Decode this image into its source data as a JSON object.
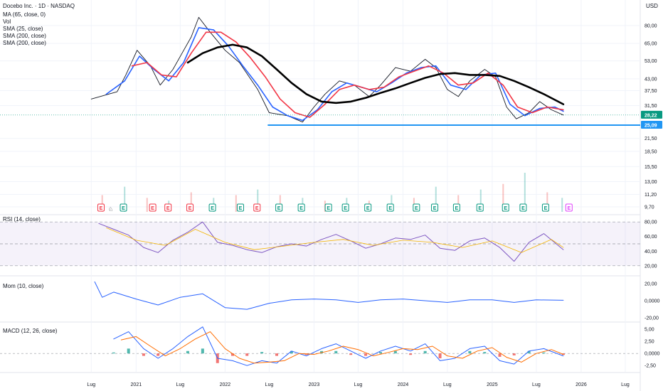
{
  "header": {
    "title": "Docebo Inc. · 1D · NASDAQ",
    "indicators": [
      "MA (65, close, 0)",
      "Vol",
      "SMA (25, close)",
      "SMA (200, close)",
      "SMA (200, close)"
    ],
    "currency": "USD"
  },
  "colors": {
    "price": "#131722",
    "sma_blue": "#2962ff",
    "sma_red": "#f23645",
    "sma_black": "#000000",
    "support": "#2196f3",
    "rsi": "#7e57c2",
    "rsi_ma": "#f4b400",
    "mom": "#2962ff",
    "macd": "#2962ff",
    "signal": "#ff6d00",
    "hist_up": "#26a69a",
    "hist_down": "#ef5350",
    "vol_up": "#26a69a",
    "vol_down": "#ef5350",
    "current_tag": "#089981",
    "earn_green": "#089981",
    "earn_red": "#f23645",
    "earn_purple": "#e040fb"
  },
  "chart_data": [
    {
      "type": "line",
      "pane": "price",
      "y_scale": "log",
      "ylim": [
        9.0,
        105.0
      ],
      "y_ticks": [
        "80,00",
        "65,00",
        "53,00",
        "43,00",
        "37,50",
        "31,50",
        "28,22",
        "25,09",
        "21,50",
        "18,50",
        "15,50",
        "13,00",
        "11,20",
        "9,70"
      ],
      "x_ticks": [
        "Lug",
        "2021",
        "Lug",
        "2022",
        "Lug",
        "2023",
        "Lug",
        "2024",
        "Lug",
        "2025",
        "Lug",
        "2026",
        "Lug"
      ],
      "x_range": [
        "2020-06-01",
        "2026-09-15"
      ],
      "series": [
        {
          "role": "price",
          "x": [
            "2020-07-01",
            "2020-10-15",
            "2020-11-20",
            "2021-01-05",
            "2021-03-01",
            "2021-04-10",
            "2021-06-01",
            "2021-08-15",
            "2021-09-15",
            "2021-11-01",
            "2022-01-01",
            "2022-03-01",
            "2022-05-15",
            "2022-07-01",
            "2022-09-15",
            "2022-11-15",
            "2023-01-01",
            "2023-02-15",
            "2023-04-15",
            "2023-06-15",
            "2023-08-15",
            "2023-10-01",
            "2023-12-01",
            "2024-02-01",
            "2024-04-01",
            "2024-05-15",
            "2024-07-01",
            "2024-08-15",
            "2024-10-01",
            "2024-12-01",
            "2025-01-15",
            "2025-03-01",
            "2025-04-10",
            "2025-06-01",
            "2025-07-15",
            "2025-09-01",
            "2025-10-20"
          ],
          "y": [
            34,
            37,
            45,
            60,
            50,
            40,
            48,
            70,
            88,
            74,
            60,
            52,
            38,
            29,
            28,
            26,
            31,
            36,
            42,
            40,
            35,
            40,
            49,
            47,
            54,
            49,
            38,
            35,
            42,
            48,
            44,
            31,
            27,
            29,
            33,
            30,
            28.22
          ]
        },
        {
          "role": "sma_blue",
          "x": [
            "2020-09-01",
            "2020-11-15",
            "2021-01-15",
            "2021-03-15",
            "2021-05-15",
            "2021-07-15",
            "2021-09-15",
            "2021-11-15",
            "2022-01-15",
            "2022-03-15",
            "2022-05-15",
            "2022-07-15",
            "2022-09-15",
            "2022-11-15",
            "2023-01-15",
            "2023-03-15",
            "2023-05-15",
            "2023-07-15",
            "2023-09-15",
            "2023-11-15",
            "2024-01-15",
            "2024-03-15",
            "2024-05-15",
            "2024-07-15",
            "2024-09-15",
            "2024-11-15",
            "2025-01-15",
            "2025-03-15",
            "2025-05-15",
            "2025-07-15",
            "2025-09-15",
            "2025-10-20"
          ],
          "y": [
            36,
            42,
            56,
            48,
            42,
            52,
            78,
            76,
            63,
            50,
            40,
            31,
            28,
            26.5,
            30,
            37,
            41,
            39,
            37,
            41,
            46,
            49,
            50,
            40,
            38,
            45,
            46,
            32,
            28,
            30.5,
            31,
            29.5
          ]
        },
        {
          "role": "sma_red",
          "x": [
            "2020-12-15",
            "2021-02-15",
            "2021-04-15",
            "2021-06-15",
            "2021-08-15",
            "2021-10-15",
            "2021-12-15",
            "2022-02-15",
            "2022-04-15",
            "2022-06-15",
            "2022-08-15",
            "2022-10-15",
            "2022-12-15",
            "2023-02-15",
            "2023-04-15",
            "2023-06-15",
            "2023-08-15",
            "2023-10-15",
            "2023-12-15",
            "2024-02-15",
            "2024-04-15",
            "2024-06-15",
            "2024-08-15",
            "2024-10-15",
            "2024-12-15",
            "2025-02-15",
            "2025-04-15",
            "2025-06-15",
            "2025-08-15",
            "2025-10-20"
          ],
          "y": [
            50,
            52,
            45,
            44,
            58,
            74,
            74,
            66,
            55,
            44,
            34,
            29,
            27.5,
            32,
            38,
            40,
            38,
            39,
            44,
            47,
            50,
            46,
            40,
            41,
            46,
            40,
            31,
            29,
            31,
            30
          ]
        },
        {
          "role": "sma_black",
          "x": [
            "2021-08-01",
            "2021-10-01",
            "2021-12-01",
            "2022-02-01",
            "2022-04-01",
            "2022-06-01",
            "2022-08-01",
            "2022-10-01",
            "2022-12-01",
            "2023-02-01",
            "2023-04-01",
            "2023-06-01",
            "2023-08-01",
            "2023-10-01",
            "2023-12-01",
            "2024-02-01",
            "2024-04-01",
            "2024-06-01",
            "2024-08-01",
            "2024-10-01",
            "2024-12-01",
            "2025-02-01",
            "2025-04-01",
            "2025-06-01",
            "2025-08-01",
            "2025-10-20"
          ],
          "y": [
            52,
            58,
            62,
            64,
            62,
            56,
            48,
            41,
            36,
            33,
            32.5,
            33,
            34.5,
            36.5,
            38.5,
            41,
            43.5,
            45.5,
            46,
            45,
            45,
            44.5,
            42,
            39,
            36,
            32
          ]
        }
      ],
      "support": {
        "y": 25.09,
        "x_start": "2022-06-25",
        "label": "25,09"
      },
      "current": {
        "y": 28.22,
        "label": "28,22"
      }
    },
    {
      "type": "bar",
      "pane": "volume",
      "x": [
        "2020-08",
        "2020-11",
        "2021-02",
        "2021-05",
        "2021-08",
        "2021-11",
        "2022-02",
        "2022-05",
        "2022-08",
        "2022-11",
        "2023-02",
        "2023-05",
        "2023-08",
        "2023-11",
        "2024-02",
        "2024-05",
        "2024-08",
        "2024-11",
        "2025-02",
        "2025-05",
        "2025-08",
        "2025-10"
      ],
      "values": [
        30,
        45,
        25,
        20,
        35,
        25,
        30,
        40,
        30,
        25,
        20,
        25,
        20,
        30,
        25,
        45,
        30,
        40,
        50,
        70,
        35,
        25
      ],
      "earnings": [
        {
          "x": "2020-08-10",
          "label": "E",
          "kind": "red"
        },
        {
          "x": "2020-11-10",
          "label": "E",
          "kind": "green"
        },
        {
          "x": "2021-03-10",
          "label": "E",
          "kind": "red"
        },
        {
          "x": "2021-05-12",
          "label": "E",
          "kind": "red"
        },
        {
          "x": "2021-08-10",
          "label": "E",
          "kind": "red"
        },
        {
          "x": "2021-11-10",
          "label": "E",
          "kind": "green"
        },
        {
          "x": "2022-03-05",
          "label": "E",
          "kind": "green"
        },
        {
          "x": "2022-05-12",
          "label": "E",
          "kind": "red"
        },
        {
          "x": "2022-08-10",
          "label": "E",
          "kind": "green"
        },
        {
          "x": "2022-11-10",
          "label": "E",
          "kind": "green"
        },
        {
          "x": "2023-03-01",
          "label": "E",
          "kind": "green"
        },
        {
          "x": "2023-05-10",
          "label": "E",
          "kind": "green"
        },
        {
          "x": "2023-08-10",
          "label": "E",
          "kind": "green"
        },
        {
          "x": "2023-11-10",
          "label": "E",
          "kind": "green"
        },
        {
          "x": "2024-02-25",
          "label": "E",
          "kind": "green"
        },
        {
          "x": "2024-05-10",
          "label": "E",
          "kind": "green"
        },
        {
          "x": "2024-08-08",
          "label": "E",
          "kind": "green"
        },
        {
          "x": "2024-11-12",
          "label": "E",
          "kind": "green"
        },
        {
          "x": "2025-02-25",
          "label": "E",
          "kind": "green"
        },
        {
          "x": "2025-05-08",
          "label": "E",
          "kind": "green"
        },
        {
          "x": "2025-08-08",
          "label": "E",
          "kind": "green"
        },
        {
          "x": "2025-11-12",
          "label": "E",
          "kind": "purple"
        }
      ]
    },
    {
      "type": "line",
      "pane": "rsi",
      "title": "RSI (14, close)",
      "ylim": [
        12,
        88
      ],
      "y_ticks": [
        "80,00",
        "60,00",
        "40,00",
        "20,00"
      ],
      "bands": [
        30,
        70
      ],
      "series": [
        {
          "role": "rsi",
          "x": [
            "2020-08-01",
            "2020-10-01",
            "2020-12-01",
            "2021-02-01",
            "2021-04-01",
            "2021-06-01",
            "2021-08-01",
            "2021-10-01",
            "2021-12-01",
            "2022-02-01",
            "2022-04-01",
            "2022-06-01",
            "2022-08-01",
            "2022-10-01",
            "2022-12-01",
            "2023-02-01",
            "2023-04-01",
            "2023-06-01",
            "2023-08-01",
            "2023-10-01",
            "2023-12-01",
            "2024-02-01",
            "2024-04-01",
            "2024-06-01",
            "2024-08-01",
            "2024-10-01",
            "2024-12-01",
            "2025-02-01",
            "2025-04-01",
            "2025-06-01",
            "2025-08-01",
            "2025-10-20"
          ],
          "y": [
            78,
            70,
            62,
            45,
            38,
            55,
            66,
            80,
            52,
            48,
            42,
            38,
            46,
            50,
            47,
            56,
            63,
            54,
            44,
            50,
            58,
            56,
            62,
            44,
            41,
            54,
            58,
            45,
            26,
            52,
            64,
            42
          ]
        },
        {
          "role": "rsi_ma",
          "x": [
            "2020-09-01",
            "2021-01-01",
            "2021-05-01",
            "2021-09-01",
            "2022-01-01",
            "2022-05-01",
            "2022-09-01",
            "2023-01-01",
            "2023-05-01",
            "2023-09-01",
            "2024-01-01",
            "2024-05-01",
            "2024-09-01",
            "2025-01-01",
            "2025-05-01",
            "2025-09-01",
            "2025-10-20"
          ],
          "y": [
            72,
            55,
            48,
            70,
            52,
            42,
            47,
            52,
            56,
            48,
            55,
            52,
            45,
            54,
            38,
            56,
            45
          ]
        }
      ]
    },
    {
      "type": "line",
      "pane": "momentum",
      "title": "Mom (10, close)",
      "ylim": [
        -24,
        24
      ],
      "y_ticks": [
        "20,00",
        "0,0000",
        "-20,00"
      ],
      "series": [
        {
          "role": "mom",
          "x": [
            "2020-07-15",
            "2020-08-15",
            "2020-10-01",
            "2021-01-01",
            "2021-04-01",
            "2021-07-01",
            "2021-10-01",
            "2022-01-01",
            "2022-04-01",
            "2022-07-01",
            "2022-10-01",
            "2023-01-01",
            "2023-04-01",
            "2023-07-01",
            "2023-10-01",
            "2024-01-01",
            "2024-04-01",
            "2024-07-01",
            "2024-10-01",
            "2025-01-01",
            "2025-04-01",
            "2025-07-01",
            "2025-10-20"
          ],
          "y": [
            22,
            4,
            10,
            2,
            -5,
            4,
            8,
            -8,
            -10,
            -3,
            1,
            2,
            1,
            -2,
            1,
            2,
            0,
            -2,
            1,
            1,
            -2,
            1,
            0.5
          ]
        }
      ]
    },
    {
      "type": "line",
      "pane": "macd",
      "title": "MACD (12, 26, close)",
      "ylim": [
        -3.8,
        6.2
      ],
      "y_ticks": [
        "5,00",
        "2,50",
        "0,0000",
        "-2,50"
      ],
      "series": [
        {
          "role": "macd",
          "x": [
            "2020-10-01",
            "2020-12-01",
            "2021-02-01",
            "2021-04-01",
            "2021-06-01",
            "2021-08-01",
            "2021-10-01",
            "2021-12-01",
            "2022-02-01",
            "2022-04-01",
            "2022-06-01",
            "2022-08-01",
            "2022-10-01",
            "2022-12-01",
            "2023-02-01",
            "2023-04-01",
            "2023-06-01",
            "2023-08-01",
            "2023-10-01",
            "2023-12-01",
            "2024-02-01",
            "2024-04-01",
            "2024-06-01",
            "2024-08-01",
            "2024-10-01",
            "2024-12-01",
            "2025-02-01",
            "2025-04-01",
            "2025-06-01",
            "2025-08-01",
            "2025-10-20"
          ],
          "y": [
            3,
            4.5,
            1,
            -1,
            1,
            3.5,
            5.5,
            -1,
            -1.5,
            -2.5,
            -1.5,
            -2,
            0.5,
            -0.5,
            1,
            2,
            0.5,
            -1,
            0.5,
            1.5,
            0.5,
            2,
            -1.5,
            -1,
            1,
            1.5,
            -1.5,
            -2.2,
            0.5,
            1,
            -0.5
          ]
        },
        {
          "role": "signal",
          "x": [
            "2020-11-01",
            "2021-01-01",
            "2021-03-01",
            "2021-05-01",
            "2021-07-01",
            "2021-09-01",
            "2021-11-01",
            "2022-01-01",
            "2022-03-01",
            "2022-05-01",
            "2022-07-01",
            "2022-09-01",
            "2022-11-01",
            "2023-01-01",
            "2023-03-01",
            "2023-05-01",
            "2023-07-01",
            "2023-09-01",
            "2023-11-01",
            "2024-01-01",
            "2024-03-01",
            "2024-05-01",
            "2024-07-01",
            "2024-09-01",
            "2024-11-01",
            "2025-01-01",
            "2025-03-01",
            "2025-05-01",
            "2025-07-01",
            "2025-09-01",
            "2025-10-20"
          ],
          "y": [
            2.8,
            3.5,
            1.5,
            -0.5,
            1,
            3,
            4.5,
            1,
            -1,
            -2,
            -1.8,
            -1.5,
            0,
            -0.2,
            0.5,
            1.5,
            0.8,
            -0.5,
            0.2,
            1,
            0.8,
            1.5,
            -0.5,
            -1,
            0.5,
            1.2,
            -0.8,
            -1.8,
            0,
            0.8,
            -0.2
          ]
        }
      ]
    }
  ]
}
